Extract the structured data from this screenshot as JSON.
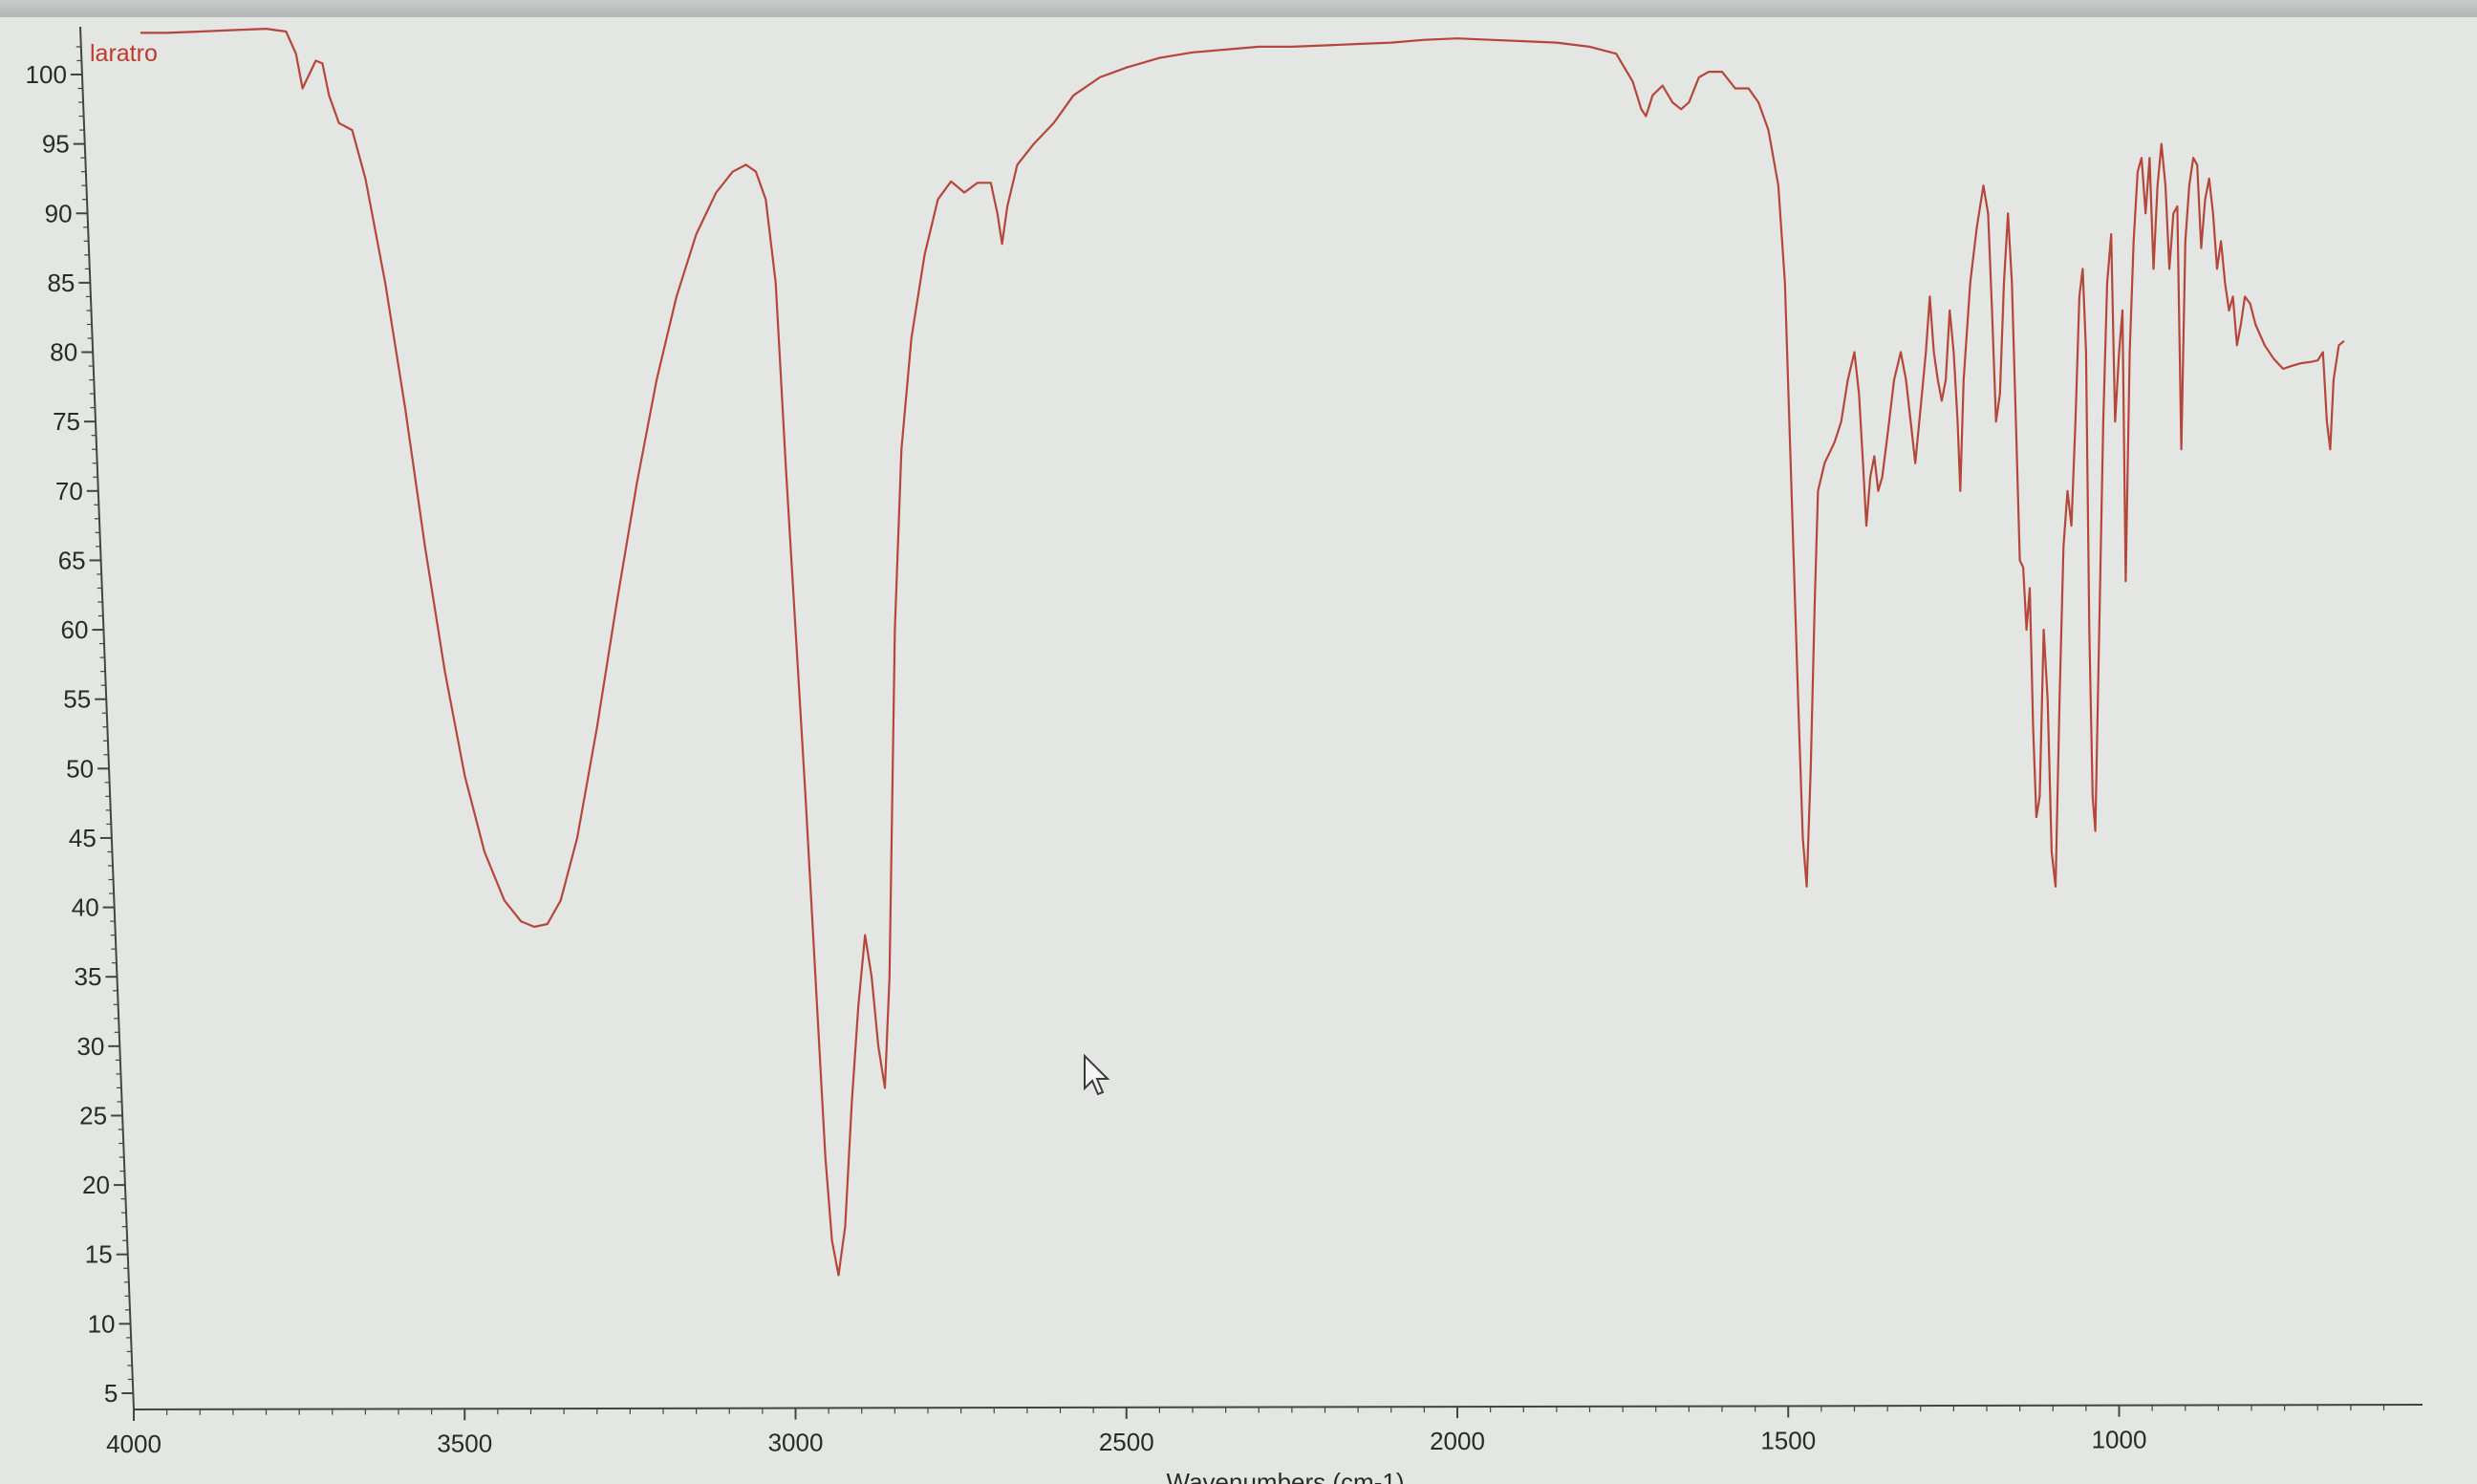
{
  "chart_data": {
    "type": "line",
    "title": "",
    "xlabel": "Wavenumbers (cm-1)",
    "ylabel": "",
    "xlim": [
      4000,
      550
    ],
    "ylim": [
      3,
      103
    ],
    "x_reversed": true,
    "grid": false,
    "legend_position": "top-left",
    "x_ticks": [
      4000,
      3500,
      3000,
      2500,
      2000,
      1500,
      1000
    ],
    "y_ticks": [
      100,
      95,
      90,
      85,
      80,
      75,
      70,
      65,
      60,
      55,
      50,
      45,
      40,
      35,
      30,
      25,
      20,
      15,
      10,
      5
    ],
    "line_color": "#b5473a",
    "series": [
      {
        "name": "laratro",
        "points": [
          [
            3990,
            103.0
          ],
          [
            3950,
            103.0
          ],
          [
            3900,
            103.1
          ],
          [
            3850,
            103.2
          ],
          [
            3800,
            103.3
          ],
          [
            3770,
            103.1
          ],
          [
            3755,
            101.5
          ],
          [
            3745,
            99.0
          ],
          [
            3735,
            100.0
          ],
          [
            3725,
            101.0
          ],
          [
            3715,
            100.8
          ],
          [
            3705,
            98.5
          ],
          [
            3690,
            96.5
          ],
          [
            3670,
            96.0
          ],
          [
            3650,
            92.5
          ],
          [
            3620,
            85.0
          ],
          [
            3590,
            76.0
          ],
          [
            3560,
            66.0
          ],
          [
            3530,
            57.0
          ],
          [
            3500,
            49.5
          ],
          [
            3470,
            44.0
          ],
          [
            3440,
            40.5
          ],
          [
            3415,
            39.0
          ],
          [
            3395,
            38.6
          ],
          [
            3375,
            38.8
          ],
          [
            3355,
            40.5
          ],
          [
            3330,
            45.0
          ],
          [
            3300,
            53.0
          ],
          [
            3270,
            62.0
          ],
          [
            3240,
            70.5
          ],
          [
            3210,
            78.0
          ],
          [
            3180,
            84.0
          ],
          [
            3150,
            88.5
          ],
          [
            3120,
            91.5
          ],
          [
            3095,
            93.0
          ],
          [
            3075,
            93.5
          ],
          [
            3060,
            93.0
          ],
          [
            3045,
            91.0
          ],
          [
            3030,
            85.0
          ],
          [
            3015,
            72.0
          ],
          [
            3000,
            60.0
          ],
          [
            2985,
            48.0
          ],
          [
            2970,
            35.0
          ],
          [
            2955,
            22.0
          ],
          [
            2945,
            16.0
          ],
          [
            2935,
            13.5
          ],
          [
            2925,
            17.0
          ],
          [
            2915,
            26.0
          ],
          [
            2905,
            33.0
          ],
          [
            2895,
            38.0
          ],
          [
            2885,
            35.0
          ],
          [
            2875,
            30.0
          ],
          [
            2865,
            27.0
          ],
          [
            2858,
            35.0
          ],
          [
            2850,
            60.0
          ],
          [
            2840,
            73.0
          ],
          [
            2825,
            81.0
          ],
          [
            2805,
            87.0
          ],
          [
            2785,
            91.0
          ],
          [
            2765,
            92.3
          ],
          [
            2745,
            91.5
          ],
          [
            2725,
            92.2
          ],
          [
            2705,
            92.2
          ],
          [
            2695,
            90.0
          ],
          [
            2688,
            87.8
          ],
          [
            2680,
            90.5
          ],
          [
            2665,
            93.5
          ],
          [
            2640,
            95.0
          ],
          [
            2610,
            96.5
          ],
          [
            2580,
            98.5
          ],
          [
            2540,
            99.8
          ],
          [
            2500,
            100.5
          ],
          [
            2450,
            101.2
          ],
          [
            2400,
            101.6
          ],
          [
            2350,
            101.8
          ],
          [
            2300,
            102.0
          ],
          [
            2250,
            102.0
          ],
          [
            2200,
            102.1
          ],
          [
            2150,
            102.2
          ],
          [
            2100,
            102.3
          ],
          [
            2050,
            102.5
          ],
          [
            2000,
            102.6
          ],
          [
            1950,
            102.5
          ],
          [
            1900,
            102.4
          ],
          [
            1850,
            102.3
          ],
          [
            1800,
            102.0
          ],
          [
            1760,
            101.5
          ],
          [
            1735,
            99.5
          ],
          [
            1722,
            97.5
          ],
          [
            1715,
            97.0
          ],
          [
            1705,
            98.5
          ],
          [
            1690,
            99.2
          ],
          [
            1675,
            98.0
          ],
          [
            1662,
            97.5
          ],
          [
            1650,
            98.0
          ],
          [
            1635,
            99.8
          ],
          [
            1620,
            100.2
          ],
          [
            1600,
            100.2
          ],
          [
            1580,
            99.0
          ],
          [
            1560,
            99.0
          ],
          [
            1545,
            98.0
          ],
          [
            1530,
            96.0
          ],
          [
            1515,
            92.0
          ],
          [
            1505,
            85.0
          ],
          [
            1495,
            70.0
          ],
          [
            1485,
            55.0
          ],
          [
            1478,
            45.0
          ],
          [
            1472,
            41.5
          ],
          [
            1466,
            50.0
          ],
          [
            1460,
            62.0
          ],
          [
            1455,
            70.0
          ],
          [
            1445,
            72.0
          ],
          [
            1430,
            73.5
          ],
          [
            1420,
            75.0
          ],
          [
            1410,
            78.0
          ],
          [
            1400,
            80.0
          ],
          [
            1393,
            77.0
          ],
          [
            1387,
            72.0
          ],
          [
            1382,
            67.5
          ],
          [
            1376,
            71.0
          ],
          [
            1370,
            72.5
          ],
          [
            1364,
            70.0
          ],
          [
            1358,
            71.0
          ],
          [
            1350,
            74.0
          ],
          [
            1340,
            78.0
          ],
          [
            1330,
            80.0
          ],
          [
            1322,
            78.0
          ],
          [
            1315,
            75.0
          ],
          [
            1308,
            72.0
          ],
          [
            1300,
            76.0
          ],
          [
            1292,
            80.0
          ],
          [
            1286,
            84.0
          ],
          [
            1280,
            80.0
          ],
          [
            1274,
            78.0
          ],
          [
            1268,
            76.5
          ],
          [
            1262,
            78.0
          ],
          [
            1256,
            83.0
          ],
          [
            1250,
            80.0
          ],
          [
            1244,
            75.0
          ],
          [
            1240,
            70.0
          ],
          [
            1235,
            78.0
          ],
          [
            1225,
            85.0
          ],
          [
            1215,
            89.0
          ],
          [
            1205,
            92.0
          ],
          [
            1198,
            90.0
          ],
          [
            1192,
            83.0
          ],
          [
            1186,
            75.0
          ],
          [
            1180,
            77.0
          ],
          [
            1174,
            85.0
          ],
          [
            1168,
            90.0
          ],
          [
            1162,
            85.0
          ],
          [
            1156,
            75.0
          ],
          [
            1150,
            65.0
          ],
          [
            1145,
            64.5
          ],
          [
            1140,
            60.0
          ],
          [
            1135,
            63.0
          ],
          [
            1130,
            53.0
          ],
          [
            1125,
            46.5
          ],
          [
            1120,
            48.0
          ],
          [
            1114,
            60.0
          ],
          [
            1108,
            55.0
          ],
          [
            1102,
            44.0
          ],
          [
            1096,
            41.5
          ],
          [
            1090,
            55.0
          ],
          [
            1084,
            66.0
          ],
          [
            1078,
            70.0
          ],
          [
            1072,
            67.5
          ],
          [
            1066,
            75.0
          ],
          [
            1060,
            84.0
          ],
          [
            1055,
            86.0
          ],
          [
            1050,
            80.0
          ],
          [
            1045,
            60.0
          ],
          [
            1040,
            48.0
          ],
          [
            1036,
            45.5
          ],
          [
            1030,
            60.0
          ],
          [
            1024,
            75.0
          ],
          [
            1018,
            85.0
          ],
          [
            1012,
            88.5
          ],
          [
            1006,
            75.0
          ],
          [
            1000,
            80.0
          ],
          [
            995,
            83.0
          ],
          [
            990,
            63.5
          ],
          [
            984,
            80.0
          ],
          [
            978,
            88.0
          ],
          [
            972,
            93.0
          ],
          [
            966,
            94.0
          ],
          [
            960,
            90.0
          ],
          [
            954,
            94.0
          ],
          [
            948,
            86.0
          ],
          [
            942,
            92.0
          ],
          [
            936,
            95.0
          ],
          [
            930,
            92.0
          ],
          [
            924,
            86.0
          ],
          [
            918,
            90.0
          ],
          [
            912,
            90.5
          ],
          [
            906,
            73.0
          ],
          [
            900,
            88.0
          ],
          [
            894,
            92.0
          ],
          [
            888,
            94.0
          ],
          [
            882,
            93.5
          ],
          [
            876,
            87.5
          ],
          [
            870,
            91.0
          ],
          [
            864,
            92.5
          ],
          [
            858,
            90.0
          ],
          [
            852,
            86.0
          ],
          [
            846,
            88.0
          ],
          [
            840,
            85.0
          ],
          [
            834,
            83.0
          ],
          [
            828,
            84.0
          ],
          [
            822,
            80.5
          ],
          [
            816,
            82.0
          ],
          [
            810,
            84.0
          ],
          [
            802,
            83.5
          ],
          [
            794,
            82.0
          ],
          [
            780,
            80.5
          ],
          [
            766,
            79.5
          ],
          [
            752,
            78.8
          ],
          [
            740,
            79.0
          ],
          [
            725,
            79.2
          ],
          [
            710,
            79.3
          ],
          [
            700,
            79.4
          ],
          [
            692,
            80.0
          ],
          [
            686,
            75.0
          ],
          [
            681,
            73.0
          ],
          [
            676,
            78.0
          ],
          [
            668,
            80.5
          ],
          [
            660,
            80.8
          ]
        ]
      }
    ]
  }
}
